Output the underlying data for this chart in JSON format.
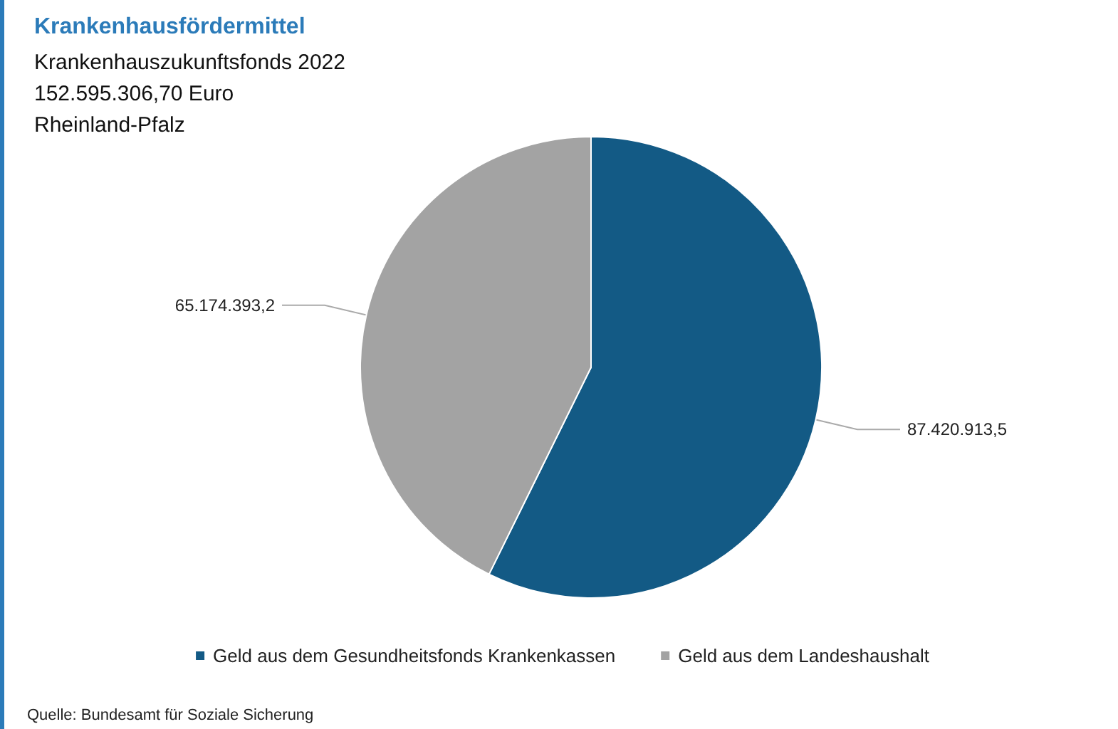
{
  "chart_data": {
    "type": "pie",
    "title": "Krankenhausfördermittel",
    "subtitle": "Krankenhauszukunftsfonds 2022\n152.595.306,70 Euro\nRheinland-Pfalz",
    "categories": [
      "Geld aus dem Gesundheitsfonds Krankenkassen",
      "Geld aus dem Landeshaushalt"
    ],
    "values": [
      87420913.5,
      65174393.2
    ],
    "value_labels": [
      "87.420.913,5",
      "65.174.393,2"
    ],
    "colors": [
      "#135a85",
      "#a3a3a3"
    ],
    "legend": "bottom",
    "annotations": [
      "Quelle: Bundesamt für Soziale Sicherung"
    ]
  }
}
